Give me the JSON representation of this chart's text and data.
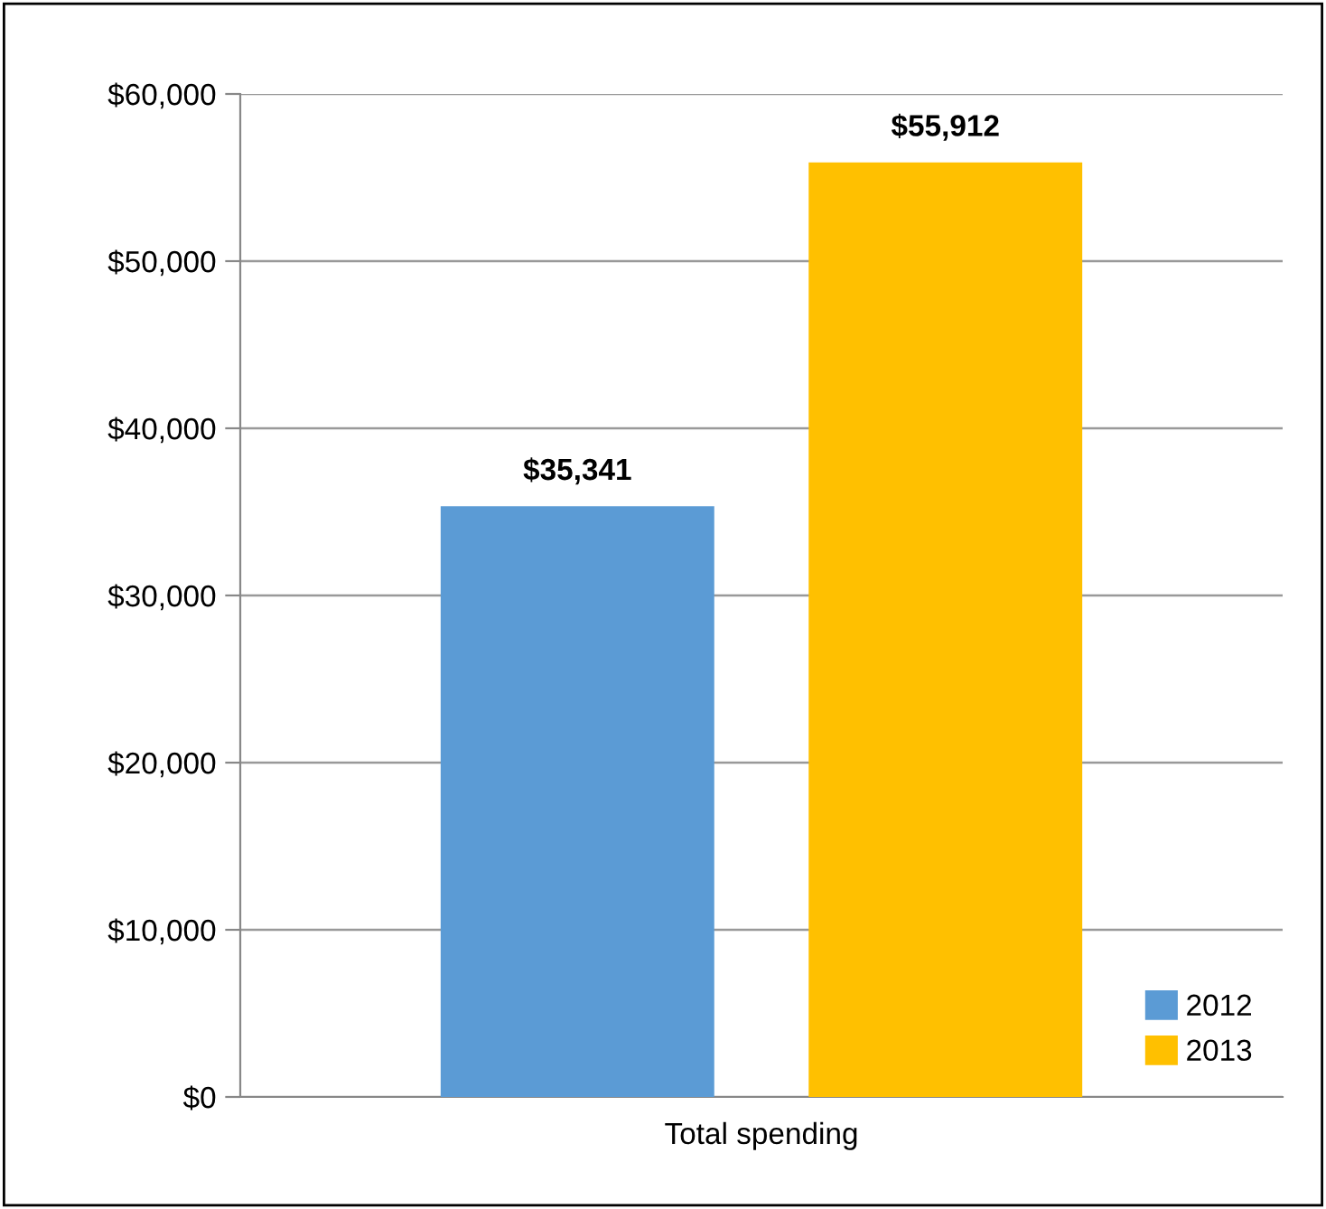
{
  "chart_data": {
    "type": "bar",
    "categories": [
      "Total spending"
    ],
    "series": [
      {
        "name": "2012",
        "color": "#5b9bd5",
        "values": [
          35341
        ],
        "value_labels": [
          "$35,341"
        ]
      },
      {
        "name": "2013",
        "color": "#ffc000",
        "values": [
          55912
        ],
        "value_labels": [
          "$55,912"
        ]
      }
    ],
    "ylim": [
      0,
      60000
    ],
    "yticks": [
      {
        "value": 0,
        "label": "$0"
      },
      {
        "value": 10000,
        "label": "$10,000"
      },
      {
        "value": 20000,
        "label": "$20,000"
      },
      {
        "value": 30000,
        "label": "$30,000"
      },
      {
        "value": 40000,
        "label": "$40,000"
      },
      {
        "value": 50000,
        "label": "$50,000"
      },
      {
        "value": 60000,
        "label": "$60,000"
      }
    ],
    "grid": "y",
    "legend": "bottom right"
  }
}
